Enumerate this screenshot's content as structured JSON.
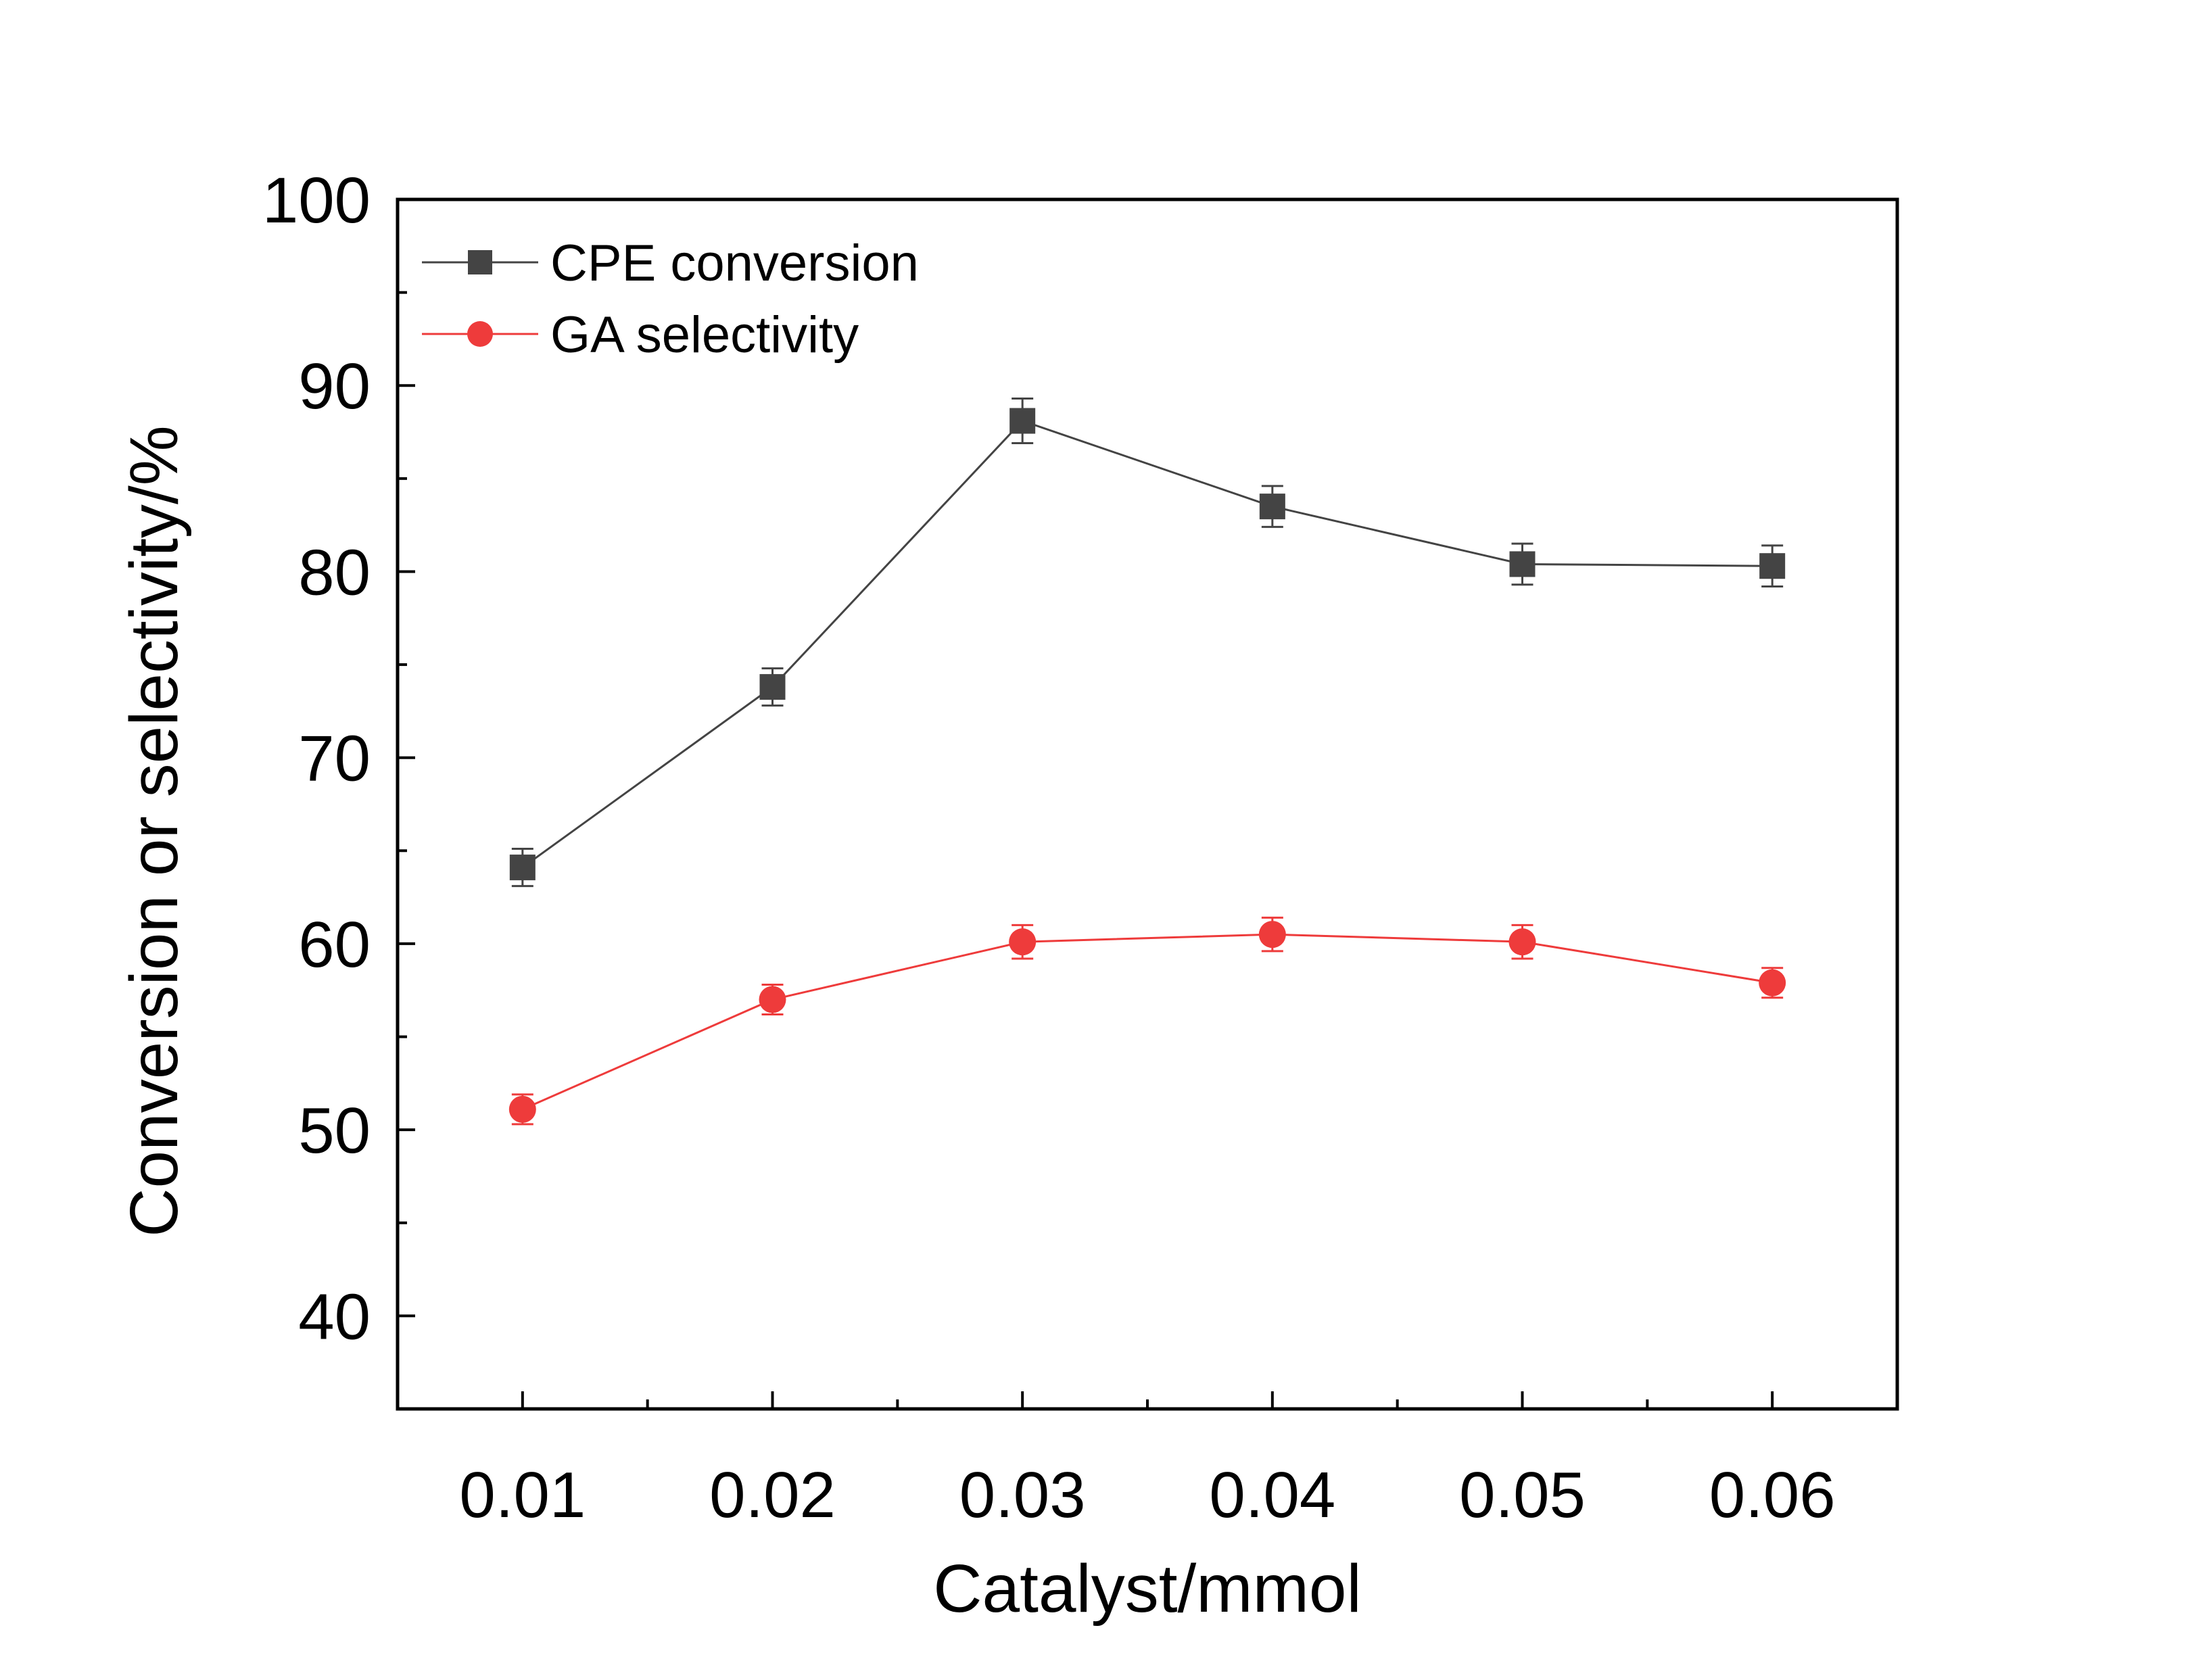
{
  "chart_data": {
    "type": "line",
    "xlabel": "Catalyst/mmol",
    "ylabel": "Conversion or selectivity/%",
    "x": [
      0.01,
      0.02,
      0.03,
      0.04,
      0.05,
      0.06
    ],
    "x_tick_labels": [
      "0.01",
      "0.02",
      "0.03",
      "0.04",
      "0.05",
      "0.06"
    ],
    "xlim": [
      0.005,
      0.065
    ],
    "ylim": [
      35,
      100
    ],
    "y_ticks": [
      40,
      50,
      60,
      70,
      80,
      90,
      100
    ],
    "y_tick_labels": [
      "40",
      "50",
      "60",
      "70",
      "80",
      "90",
      "100"
    ],
    "grid": false,
    "legend_position": "top-left",
    "series": [
      {
        "name": "CPE conversion",
        "marker": "square",
        "color": "#444444",
        "values": [
          64.1,
          73.8,
          88.1,
          83.5,
          80.4,
          80.3
        ],
        "error": [
          1.0,
          1.0,
          1.2,
          1.1,
          1.1,
          1.1
        ]
      },
      {
        "name": "GA selectivity",
        "marker": "circle",
        "color": "#ee3b3b",
        "values": [
          51.1,
          57.0,
          60.1,
          60.5,
          60.1,
          57.9
        ],
        "error": [
          0.8,
          0.8,
          0.9,
          0.9,
          0.9,
          0.8
        ]
      }
    ]
  }
}
